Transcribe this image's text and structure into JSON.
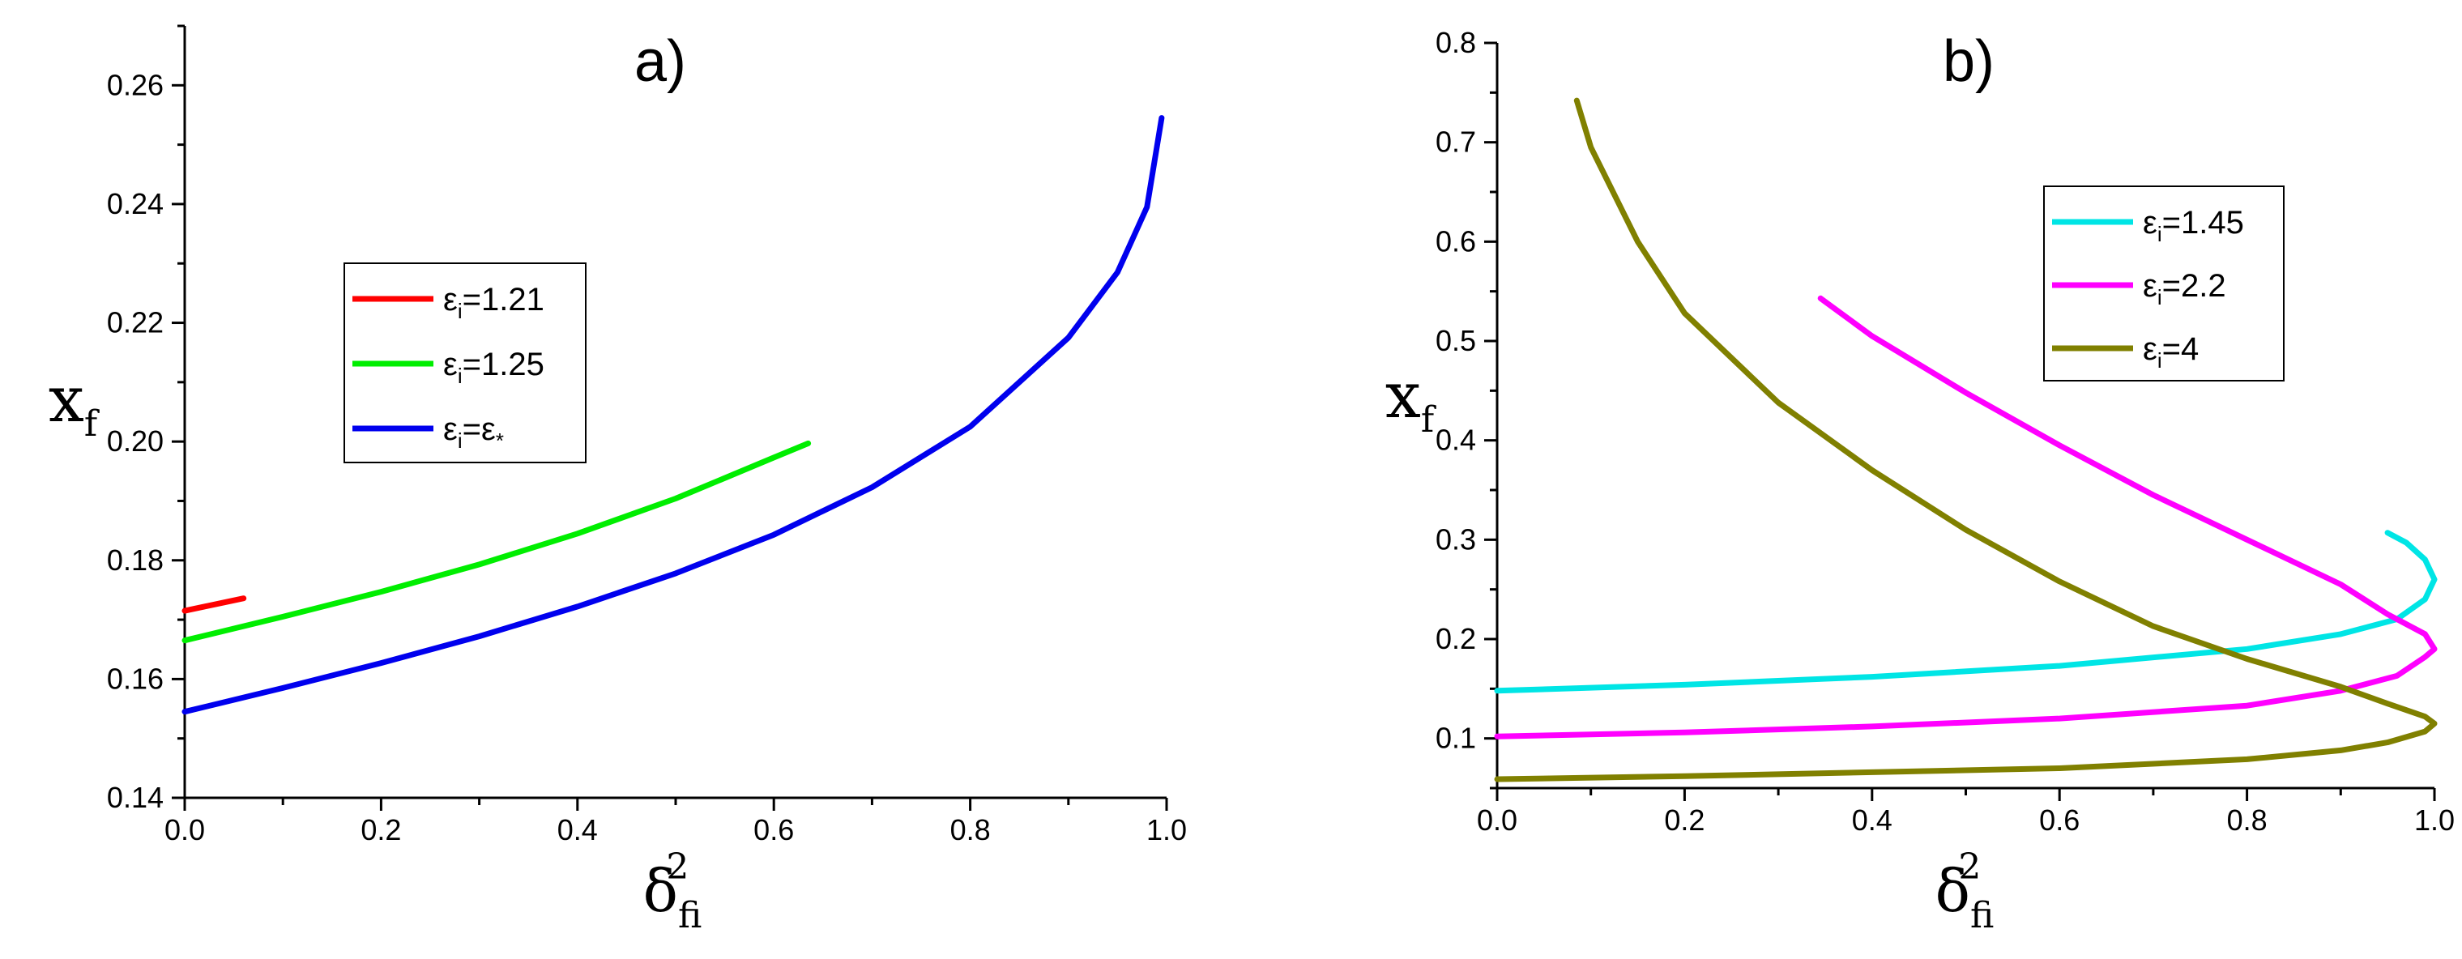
{
  "chart_data": [
    {
      "type": "line",
      "title": "a)",
      "xlabel": "δ",
      "xlabel_sup": "2",
      "xlabel_sub": "fi",
      "ylabel": "x",
      "ylabel_sub": "f",
      "xlim": [
        0.0,
        1.0
      ],
      "ylim": [
        0.14,
        0.27
      ],
      "xticks": [
        "0.0",
        "0.2",
        "0.4",
        "0.6",
        "0.8",
        "1.0"
      ],
      "yticks": [
        "0.14",
        "0.16",
        "0.18",
        "0.20",
        "0.22",
        "0.24",
        "0.26"
      ],
      "legend_position": "center-left",
      "series": [
        {
          "name": "εi=1.21",
          "label_main": "ε",
          "label_sub": "i",
          "label_rest": "=1.21",
          "color": "#ff0000",
          "points": [
            [
              0.0,
              0.1715
            ],
            [
              0.02,
              0.1722
            ],
            [
              0.04,
              0.1729
            ],
            [
              0.06,
              0.1736
            ]
          ]
        },
        {
          "name": "εi=1.25",
          "label_main": "ε",
          "label_sub": "i",
          "label_rest": "=1.25",
          "color": "#00ee00",
          "points": [
            [
              0.0,
              0.1665
            ],
            [
              0.1,
              0.1705
            ],
            [
              0.2,
              0.1747
            ],
            [
              0.3,
              0.1793
            ],
            [
              0.4,
              0.1845
            ],
            [
              0.5,
              0.1904
            ],
            [
              0.6,
              0.1973
            ],
            [
              0.635,
              0.1997
            ]
          ]
        },
        {
          "name": "εi=ε*",
          "label_main": "ε",
          "label_sub": "i",
          "label_rest": "=ε",
          "label_rest_sub": "*",
          "color": "#0000ee",
          "points": [
            [
              0.0,
              0.1545
            ],
            [
              0.1,
              0.1585
            ],
            [
              0.2,
              0.1627
            ],
            [
              0.3,
              0.1672
            ],
            [
              0.4,
              0.1722
            ],
            [
              0.5,
              0.1778
            ],
            [
              0.6,
              0.1843
            ],
            [
              0.7,
              0.1923
            ],
            [
              0.8,
              0.2025
            ],
            [
              0.9,
              0.2175
            ],
            [
              0.95,
              0.2285
            ],
            [
              0.98,
              0.2395
            ],
            [
              0.995,
              0.2545
            ]
          ]
        }
      ]
    },
    {
      "type": "line",
      "title": "b)",
      "xlabel": "δ",
      "xlabel_sup": "2",
      "xlabel_sub": "fi",
      "ylabel": "x",
      "ylabel_sub": "f",
      "xlim": [
        0.0,
        1.0
      ],
      "ylim": [
        0.05,
        0.8
      ],
      "xticks": [
        "0.0",
        "0.2",
        "0.4",
        "0.6",
        "0.8",
        "1.0"
      ],
      "yticks": [
        "0.1",
        "0.2",
        "0.3",
        "0.4",
        "0.5",
        "0.6",
        "0.7",
        "0.8"
      ],
      "legend_position": "top-right",
      "series": [
        {
          "name": "εi=1.45",
          "label_main": "ε",
          "label_sub": "i",
          "label_rest": "=1.45",
          "color": "#00e5e5",
          "points": [
            [
              0.0,
              0.148
            ],
            [
              0.2,
              0.154
            ],
            [
              0.4,
              0.162
            ],
            [
              0.6,
              0.173
            ],
            [
              0.8,
              0.19
            ],
            [
              0.9,
              0.205
            ],
            [
              0.96,
              0.22
            ],
            [
              0.99,
              0.24
            ],
            [
              1.0,
              0.26
            ],
            [
              0.99,
              0.28
            ],
            [
              0.97,
              0.297
            ],
            [
              0.95,
              0.307
            ]
          ]
        },
        {
          "name": "εi=2.2",
          "label_main": "ε",
          "label_sub": "i",
          "label_rest": "=2.2",
          "color": "#ff00ff",
          "points": [
            [
              0.0,
              0.102
            ],
            [
              0.2,
              0.106
            ],
            [
              0.4,
              0.112
            ],
            [
              0.6,
              0.12
            ],
            [
              0.8,
              0.133
            ],
            [
              0.9,
              0.148
            ],
            [
              0.96,
              0.163
            ],
            [
              0.99,
              0.182
            ],
            [
              1.0,
              0.19
            ],
            [
              0.99,
              0.205
            ],
            [
              0.95,
              0.225
            ],
            [
              0.9,
              0.255
            ],
            [
              0.8,
              0.3
            ],
            [
              0.7,
              0.345
            ],
            [
              0.6,
              0.395
            ],
            [
              0.5,
              0.448
            ],
            [
              0.4,
              0.505
            ],
            [
              0.345,
              0.543
            ]
          ]
        },
        {
          "name": "εi=4",
          "label_main": "ε",
          "label_sub": "i",
          "label_rest": "=4",
          "color": "#808000",
          "points": [
            [
              0.0,
              0.059
            ],
            [
              0.2,
              0.062
            ],
            [
              0.4,
              0.066
            ],
            [
              0.6,
              0.07
            ],
            [
              0.8,
              0.079
            ],
            [
              0.9,
              0.088
            ],
            [
              0.95,
              0.096
            ],
            [
              0.99,
              0.107
            ],
            [
              1.0,
              0.115
            ],
            [
              0.99,
              0.122
            ],
            [
              0.95,
              0.135
            ],
            [
              0.9,
              0.152
            ],
            [
              0.8,
              0.18
            ],
            [
              0.7,
              0.213
            ],
            [
              0.6,
              0.258
            ],
            [
              0.5,
              0.31
            ],
            [
              0.4,
              0.37
            ],
            [
              0.3,
              0.438
            ],
            [
              0.2,
              0.528
            ],
            [
              0.15,
              0.6
            ],
            [
              0.1,
              0.695
            ],
            [
              0.085,
              0.742
            ]
          ]
        }
      ]
    }
  ]
}
